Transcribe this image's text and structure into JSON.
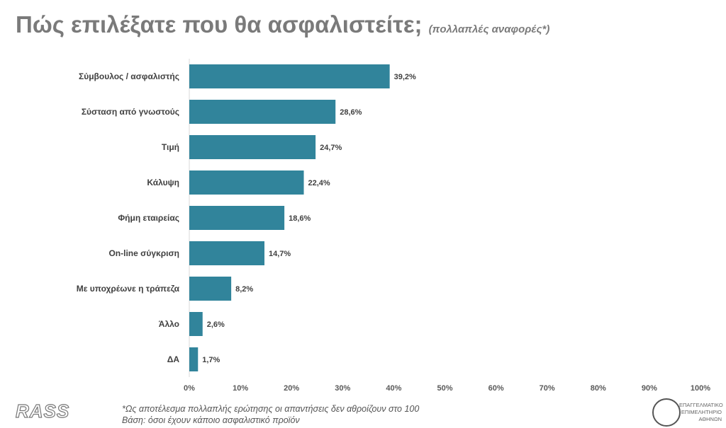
{
  "title": "Πώς επιλέξατε που θα ασφαλιστείτε;",
  "subtitle": "(πολλαπλές αναφορές*)",
  "chart_data": {
    "type": "bar",
    "orientation": "horizontal",
    "categories": [
      "Σύμβουλος / ασφαλιστής",
      "Σύσταση από γνωστούς",
      "Τιμή",
      "Κάλυψη",
      "Φήμη εταιρείας",
      "On-line σύγκριση",
      "Με υποχρέωνε η τράπεζα",
      "Άλλο",
      "ΔΑ"
    ],
    "values": [
      39.2,
      28.6,
      24.7,
      22.4,
      18.6,
      14.7,
      8.2,
      2.6,
      1.7
    ],
    "data_labels": [
      "39,2%",
      "28,6%",
      "24,7%",
      "22,4%",
      "18,6%",
      "14,7%",
      "8,2%",
      "2,6%",
      "1,7%"
    ],
    "xticks": [
      "0%",
      "10%",
      "20%",
      "30%",
      "40%",
      "50%",
      "60%",
      "70%",
      "80%",
      "90%",
      "100%"
    ],
    "xlim": [
      0,
      100
    ],
    "grid": false,
    "bar_color": "#31849b"
  },
  "footer": {
    "logo": "RASS",
    "note1": "*Ως αποτέλεσμα πολλαπλής ερώτησης οι απαντήσεις δεν αθροίζουν στο 100",
    "note2": "Βάση: όσοι έχουν κάποιο ασφαλιστικό προϊόν",
    "seal_lines": [
      "ΕΠΑΓΓΕΛΜΑΤΙΚΟ",
      "ΕΠΙΜΕΛΗΤΗΡΙΟ",
      "ΑΘΗΝΩΝ"
    ]
  }
}
